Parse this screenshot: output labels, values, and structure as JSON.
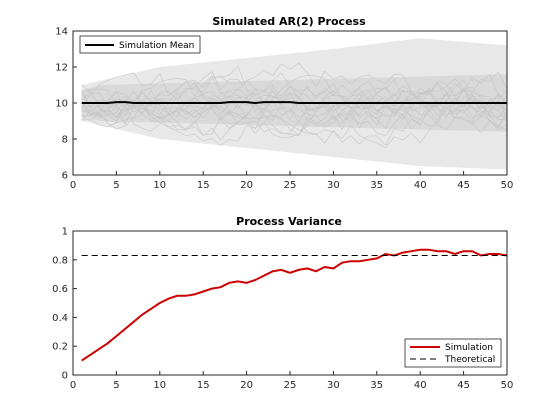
{
  "chart_data": [
    {
      "type": "line",
      "title": "Simulated AR(2) Process",
      "xlabel": "",
      "ylabel": "",
      "xlim": [
        0,
        50
      ],
      "ylim": [
        6,
        14
      ],
      "xticks": [
        0,
        5,
        10,
        15,
        20,
        25,
        30,
        35,
        40,
        45,
        50
      ],
      "yticks": [
        6,
        8,
        10,
        12,
        14
      ],
      "grid": false,
      "legend_position": "top-left",
      "simulation_band": {
        "color": "#d9d9d9",
        "x": [
          1,
          50
        ],
        "center": 10,
        "inner_halfwidth_start": 0.7,
        "inner_halfwidth_end": 1.6,
        "outer_low": [
          9.0,
          8.0,
          7.5,
          7.0,
          6.5,
          6.3
        ],
        "outer_high": [
          11.0,
          12.0,
          12.5,
          13.0,
          13.6,
          13.2
        ],
        "outer_x": [
          1,
          10,
          20,
          30,
          40,
          50
        ]
      },
      "series": [
        {
          "name": "Simulation Mean",
          "color": "#000000",
          "x": [
            1,
            2,
            3,
            4,
            5,
            6,
            7,
            8,
            9,
            10,
            11,
            12,
            13,
            14,
            15,
            16,
            17,
            18,
            19,
            20,
            21,
            22,
            23,
            24,
            25,
            26,
            27,
            28,
            29,
            30,
            31,
            32,
            33,
            34,
            35,
            36,
            37,
            38,
            39,
            40,
            41,
            42,
            43,
            44,
            45,
            46,
            47,
            48,
            49,
            50
          ],
          "values": [
            10.0,
            10.0,
            10.0,
            10.0,
            10.05,
            10.05,
            10.0,
            10.0,
            10.0,
            10.0,
            10.0,
            10.0,
            10.0,
            10.0,
            10.0,
            10.0,
            10.0,
            10.05,
            10.05,
            10.05,
            10.0,
            10.05,
            10.05,
            10.05,
            10.05,
            10.0,
            10.0,
            10.0,
            10.0,
            10.0,
            10.0,
            10.0,
            10.0,
            10.0,
            10.0,
            10.0,
            10.0,
            10.0,
            10.0,
            10.0,
            10.0,
            10.0,
            10.0,
            10.0,
            10.0,
            10.0,
            10.0,
            10.0,
            10.0,
            10.0
          ]
        }
      ]
    },
    {
      "type": "line",
      "title": "Process Variance",
      "xlabel": "",
      "ylabel": "",
      "xlim": [
        0,
        50
      ],
      "ylim": [
        0,
        1
      ],
      "xticks": [
        0,
        5,
        10,
        15,
        20,
        25,
        30,
        35,
        40,
        45,
        50
      ],
      "yticks": [
        0,
        0.2,
        0.4,
        0.6,
        0.8,
        1
      ],
      "grid": false,
      "legend_position": "bottom-right",
      "series": [
        {
          "name": "Simulation",
          "color": "#cc0000",
          "style": "solid",
          "x": [
            1,
            2,
            3,
            4,
            5,
            6,
            7,
            8,
            9,
            10,
            11,
            12,
            13,
            14,
            15,
            16,
            17,
            18,
            19,
            20,
            21,
            22,
            23,
            24,
            25,
            26,
            27,
            28,
            29,
            30,
            31,
            32,
            33,
            34,
            35,
            36,
            37,
            38,
            39,
            40,
            41,
            42,
            43,
            44,
            45,
            46,
            47,
            48,
            49,
            50
          ],
          "values": [
            0.1,
            0.14,
            0.18,
            0.22,
            0.27,
            0.32,
            0.37,
            0.42,
            0.46,
            0.5,
            0.53,
            0.55,
            0.55,
            0.56,
            0.58,
            0.6,
            0.61,
            0.64,
            0.65,
            0.64,
            0.66,
            0.69,
            0.72,
            0.73,
            0.71,
            0.73,
            0.74,
            0.72,
            0.75,
            0.74,
            0.78,
            0.79,
            0.79,
            0.8,
            0.81,
            0.84,
            0.83,
            0.85,
            0.86,
            0.87,
            0.87,
            0.86,
            0.86,
            0.84,
            0.86,
            0.86,
            0.83,
            0.84,
            0.84,
            0.83
          ]
        },
        {
          "name": "Theoretical",
          "color": "#000000",
          "style": "dashed",
          "x": [
            1,
            50
          ],
          "values": [
            0.83,
            0.83
          ]
        }
      ]
    }
  ]
}
